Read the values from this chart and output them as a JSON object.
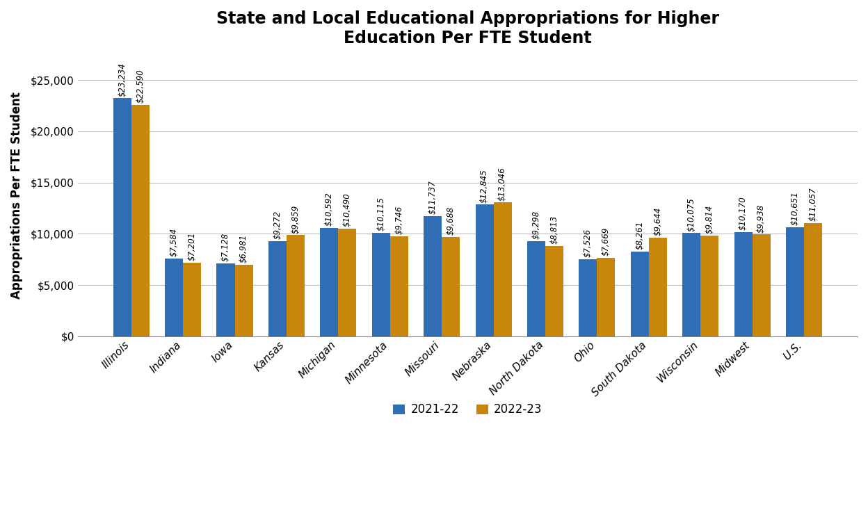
{
  "title": "State and Local Educational Appropriations for Higher\nEducation Per FTE Student",
  "ylabel": "Appropriations Per FTE Student",
  "categories": [
    "Illinois",
    "Indiana",
    "Iowa",
    "Kansas",
    "Michigan",
    "Minnesota",
    "Missouri",
    "Nebraska",
    "North Dakota",
    "Ohio",
    "South Dakota",
    "Wisconsin",
    "Midwest",
    "U.S."
  ],
  "values_2122": [
    23234,
    7584,
    7128,
    9272,
    10592,
    10115,
    11737,
    12845,
    9298,
    7526,
    8261,
    10075,
    10170,
    10651
  ],
  "values_2223": [
    22590,
    7201,
    6981,
    9859,
    10490,
    9746,
    9688,
    13046,
    8813,
    7669,
    9644,
    9814,
    9938,
    11057
  ],
  "bar_color_2122": "#2f6db5",
  "bar_color_2223": "#c8860a",
  "legend_labels": [
    "2021-22",
    "2022-23"
  ],
  "ylim": [
    0,
    27500
  ],
  "yticks": [
    0,
    5000,
    10000,
    15000,
    20000,
    25000
  ],
  "background_color": "#ffffff",
  "grid_color": "#bbbbbb",
  "title_fontsize": 17,
  "label_fontsize": 12,
  "tick_fontsize": 11,
  "annotation_fontsize": 8.5,
  "legend_fontsize": 12
}
